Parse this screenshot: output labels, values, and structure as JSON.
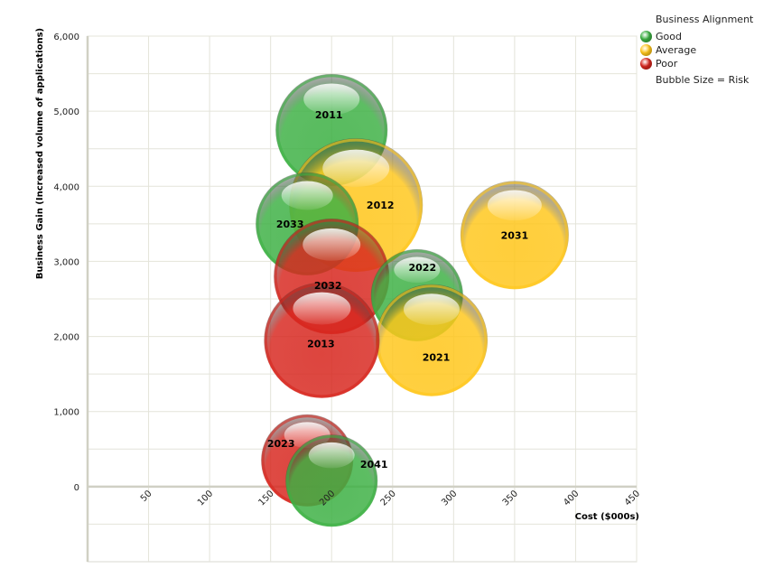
{
  "chart_data": {
    "type": "scatter",
    "title": "",
    "xlabel": "Cost ($000s)",
    "ylabel": "Business Gain (Increased volume of applications)",
    "xlim": [
      0,
      450
    ],
    "ylim": [
      -1000,
      6000
    ],
    "x_ticks": [
      "50",
      "100",
      "150",
      "200",
      "250",
      "300",
      "350",
      "400",
      "450"
    ],
    "y_ticks": [
      "0",
      "1,000",
      "2,000",
      "3,000",
      "4,000",
      "5,000",
      "6,000"
    ],
    "grid": true,
    "legend": {
      "title": "Business Alignment",
      "items": [
        {
          "name": "Good",
          "color": "#3cb043"
        },
        {
          "name": "Average",
          "color": "#ffc61a"
        },
        {
          "name": "Poor",
          "color": "#d7261e"
        }
      ],
      "note": "Bubble Size = Risk",
      "placement": "top-right"
    },
    "bubbles": [
      {
        "label": "2011",
        "x": 200,
        "y": 4750,
        "size": 62,
        "alignment": "Good"
      },
      {
        "label": "2012",
        "x": 220,
        "y": 3750,
        "size": 74,
        "alignment": "Average"
      },
      {
        "label": "2031",
        "x": 350,
        "y": 3350,
        "size": 60,
        "alignment": "Average"
      },
      {
        "label": "2033",
        "x": 180,
        "y": 3500,
        "size": 57,
        "alignment": "Good"
      },
      {
        "label": "2032",
        "x": 200,
        "y": 2800,
        "size": 64,
        "alignment": "Poor"
      },
      {
        "label": "2022",
        "x": 270,
        "y": 2550,
        "size": 51,
        "alignment": "Good"
      },
      {
        "label": "2021",
        "x": 282,
        "y": 1950,
        "size": 62,
        "alignment": "Average"
      },
      {
        "label": "2013",
        "x": 192,
        "y": 1950,
        "size": 64,
        "alignment": "Poor"
      },
      {
        "label": "2023",
        "x": 180,
        "y": 350,
        "size": 51,
        "alignment": "Poor"
      },
      {
        "label": "2041",
        "x": 200,
        "y": 80,
        "size": 51,
        "alignment": "Good"
      }
    ]
  }
}
